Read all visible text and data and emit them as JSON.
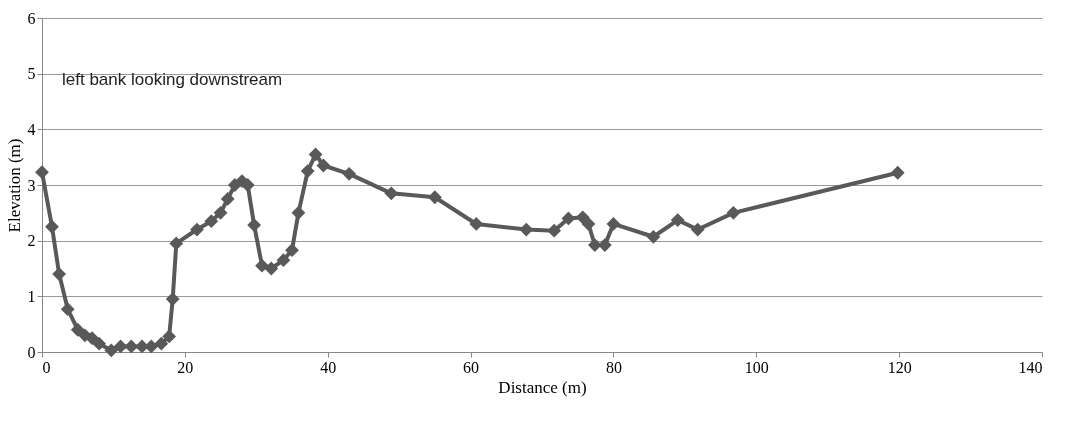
{
  "chart_data": {
    "type": "line",
    "xlabel": "Distance (m)",
    "ylabel": "Elevation (m)",
    "annotations": [
      "left bank looking downstream"
    ],
    "x": [
      0,
      1.4,
      2.4,
      3.6,
      5,
      6,
      7,
      8,
      9.7,
      11,
      12.5,
      14,
      15.3,
      16.7,
      17.8,
      18.3,
      18.8,
      21.7,
      23.7,
      25,
      26,
      27,
      28,
      28.8,
      29.7,
      30.8,
      32.1,
      33.8,
      35,
      35.9,
      37.2,
      38.3,
      39.4,
      43,
      48.9,
      55,
      60.8,
      67.8,
      71.7,
      73.7,
      75.7,
      76.5,
      77.4,
      78.8,
      80,
      85.6,
      89,
      91.8,
      96.8,
      119.8
    ],
    "series": [
      {
        "color": "#595959",
        "values": [
          3.23,
          2.25,
          1.4,
          0.77,
          0.4,
          0.3,
          0.25,
          0.15,
          0.03,
          0.1,
          0.1,
          0.1,
          0.1,
          0.15,
          0.28,
          0.95,
          1.95,
          2.2,
          2.35,
          2.5,
          2.75,
          3.0,
          3.07,
          3.0,
          2.28,
          1.55,
          1.5,
          1.65,
          1.83,
          2.5,
          3.25,
          3.55,
          3.35,
          3.2,
          2.85,
          2.78,
          2.3,
          2.2,
          2.18,
          2.4,
          2.42,
          2.3,
          1.92,
          1.92,
          2.3,
          2.07,
          2.37,
          2.2,
          2.5,
          3.22
        ]
      }
    ],
    "xlim": [
      0,
      140
    ],
    "xticks": [
      0,
      20,
      40,
      60,
      80,
      100,
      120,
      140
    ],
    "ylim": [
      0,
      6
    ],
    "yticks": [
      0,
      1,
      2,
      3,
      4,
      5,
      6
    ],
    "grid": "y",
    "marker": "diamond",
    "line_style": "solid"
  }
}
